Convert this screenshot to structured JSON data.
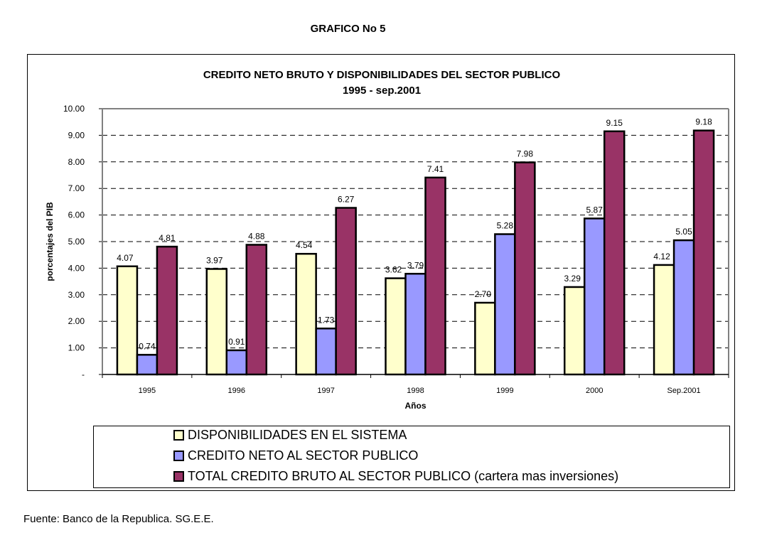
{
  "page": {
    "heading": "GRAFICO No 5",
    "source_note": "Fuente: Banco de la Republica. SG.E.E."
  },
  "chart_data": {
    "type": "bar",
    "title": "CREDITO NETO BRUTO Y DISPONIBILIDADES DEL SECTOR PUBLICO",
    "subtitle": "1995 - sep.2001",
    "xlabel": "Años",
    "ylabel": "porcentajes del PIB",
    "ylim": [
      0,
      10
    ],
    "yticks": [
      0,
      1,
      2,
      3,
      4,
      5,
      6,
      7,
      8,
      9,
      10
    ],
    "ytick_labels": [
      "-",
      "1.00",
      "2.00",
      "3.00",
      "4.00",
      "5.00",
      "6.00",
      "7.00",
      "8.00",
      "9.00",
      "10.00"
    ],
    "grid": "horizontal dashed",
    "legend_position": "bottom",
    "categories": [
      "1995",
      "1996",
      "1997",
      "1998",
      "1999",
      "2000",
      "Sep.2001"
    ],
    "series": [
      {
        "name": "DISPONIBILIDADES EN EL SISTEMA",
        "color": "#FFFFCC",
        "values": [
          4.07,
          3.97,
          4.54,
          3.62,
          2.7,
          3.29,
          4.12
        ],
        "labels": [
          "4.07",
          "3.97",
          "4.54",
          "3.62",
          "2.70",
          "3.29",
          "4.12"
        ]
      },
      {
        "name": "CREDITO NETO AL SECTOR PUBLICO",
        "color": "#9999FF",
        "values": [
          0.74,
          0.91,
          1.73,
          3.79,
          5.28,
          5.87,
          5.05
        ],
        "labels": [
          "0.74",
          "0.91",
          "1.73",
          "3.79",
          "5.28",
          "5.87",
          "5.05"
        ]
      },
      {
        "name": "TOTAL CREDITO BRUTO AL SECTOR PUBLICO (cartera mas inversiones)",
        "color": "#993366",
        "values": [
          4.81,
          4.88,
          6.27,
          7.41,
          7.98,
          9.15,
          9.18
        ],
        "labels": [
          "4.81",
          "4.88",
          "6.27",
          "7.41",
          "7.98",
          "9.15",
          "9.18"
        ]
      }
    ]
  }
}
